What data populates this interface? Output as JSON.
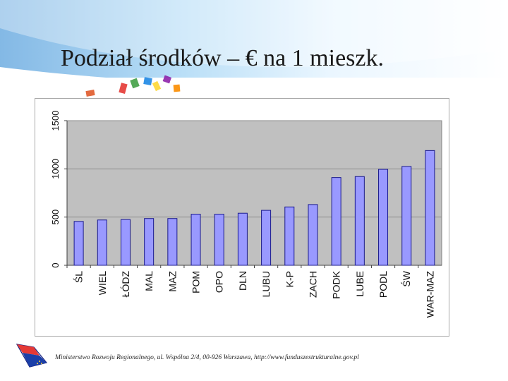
{
  "slide": {
    "title": "Podział środków – € na 1 mieszk.",
    "footer": "Ministerstwo Rozwoju Regionalnego, ul. Wspólna 2/4, 00-926 Warszawa, http://www.funduszestrukturalne.gov.pl"
  },
  "colors": {
    "bar_fill": "#9999ff",
    "bar_stroke": "#1a1a8c",
    "plot_bg": "#c0c0c0",
    "gridline": "#8c8c8c"
  },
  "chart_data": {
    "type": "bar",
    "title": "",
    "xlabel": "",
    "ylabel": "",
    "categories": [
      "ŚL",
      "WIEL",
      "ŁÓDZ",
      "MAL",
      "MAZ",
      "POM",
      "OPO",
      "DLN",
      "LUBU",
      "K-P",
      "ZACH",
      "PODK",
      "LUBE",
      "PODL",
      "ŚW",
      "WAR-MAZ"
    ],
    "values": [
      455,
      470,
      475,
      485,
      485,
      530,
      530,
      540,
      570,
      605,
      630,
      910,
      920,
      995,
      1025,
      1190
    ],
    "ylim": [
      0,
      1500
    ],
    "yticks": [
      0,
      500,
      1000,
      1500
    ],
    "grid": true,
    "legend": "none"
  }
}
